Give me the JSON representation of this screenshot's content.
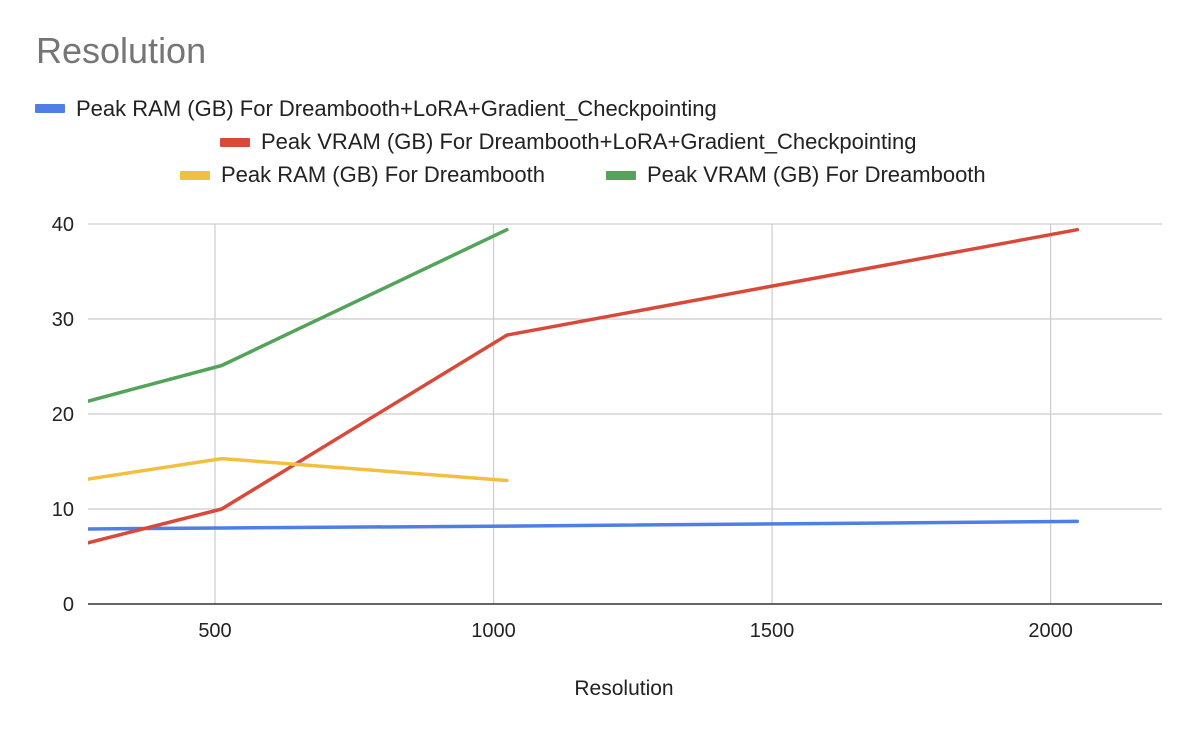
{
  "chart_data": {
    "type": "line",
    "title": "Resolution",
    "xlabel": "Resolution",
    "ylabel": "",
    "xlim": [
      272,
      2200
    ],
    "ylim": [
      0,
      40
    ],
    "xticks": [
      500,
      1000,
      1500,
      2000
    ],
    "yticks": [
      0,
      10,
      20,
      30,
      40
    ],
    "grid": true,
    "legend_position": "top",
    "series": [
      {
        "name": "Peak RAM (GB) For Dreambooth+LoRA+Gradient_Checkpointing",
        "color": "#4f7fe6",
        "x": [
          256,
          512,
          1024,
          2048
        ],
        "values": [
          7.9,
          8.0,
          8.2,
          8.7
        ]
      },
      {
        "name": "Peak VRAM (GB) For Dreambooth+LoRA+Gradient_Checkpointing",
        "color": "#d9493a",
        "x": [
          256,
          512,
          1024,
          2048
        ],
        "values": [
          6.2,
          10.0,
          28.3,
          39.4
        ]
      },
      {
        "name": "Peak RAM (GB) For Dreambooth",
        "color": "#f2c040",
        "x": [
          256,
          512,
          1024
        ],
        "values": [
          13.0,
          15.3,
          13.0
        ]
      },
      {
        "name": "Peak VRAM (GB) For Dreambooth",
        "color": "#53a35a",
        "x": [
          256,
          512,
          1024
        ],
        "values": [
          21.1,
          25.1,
          39.4
        ]
      }
    ]
  }
}
